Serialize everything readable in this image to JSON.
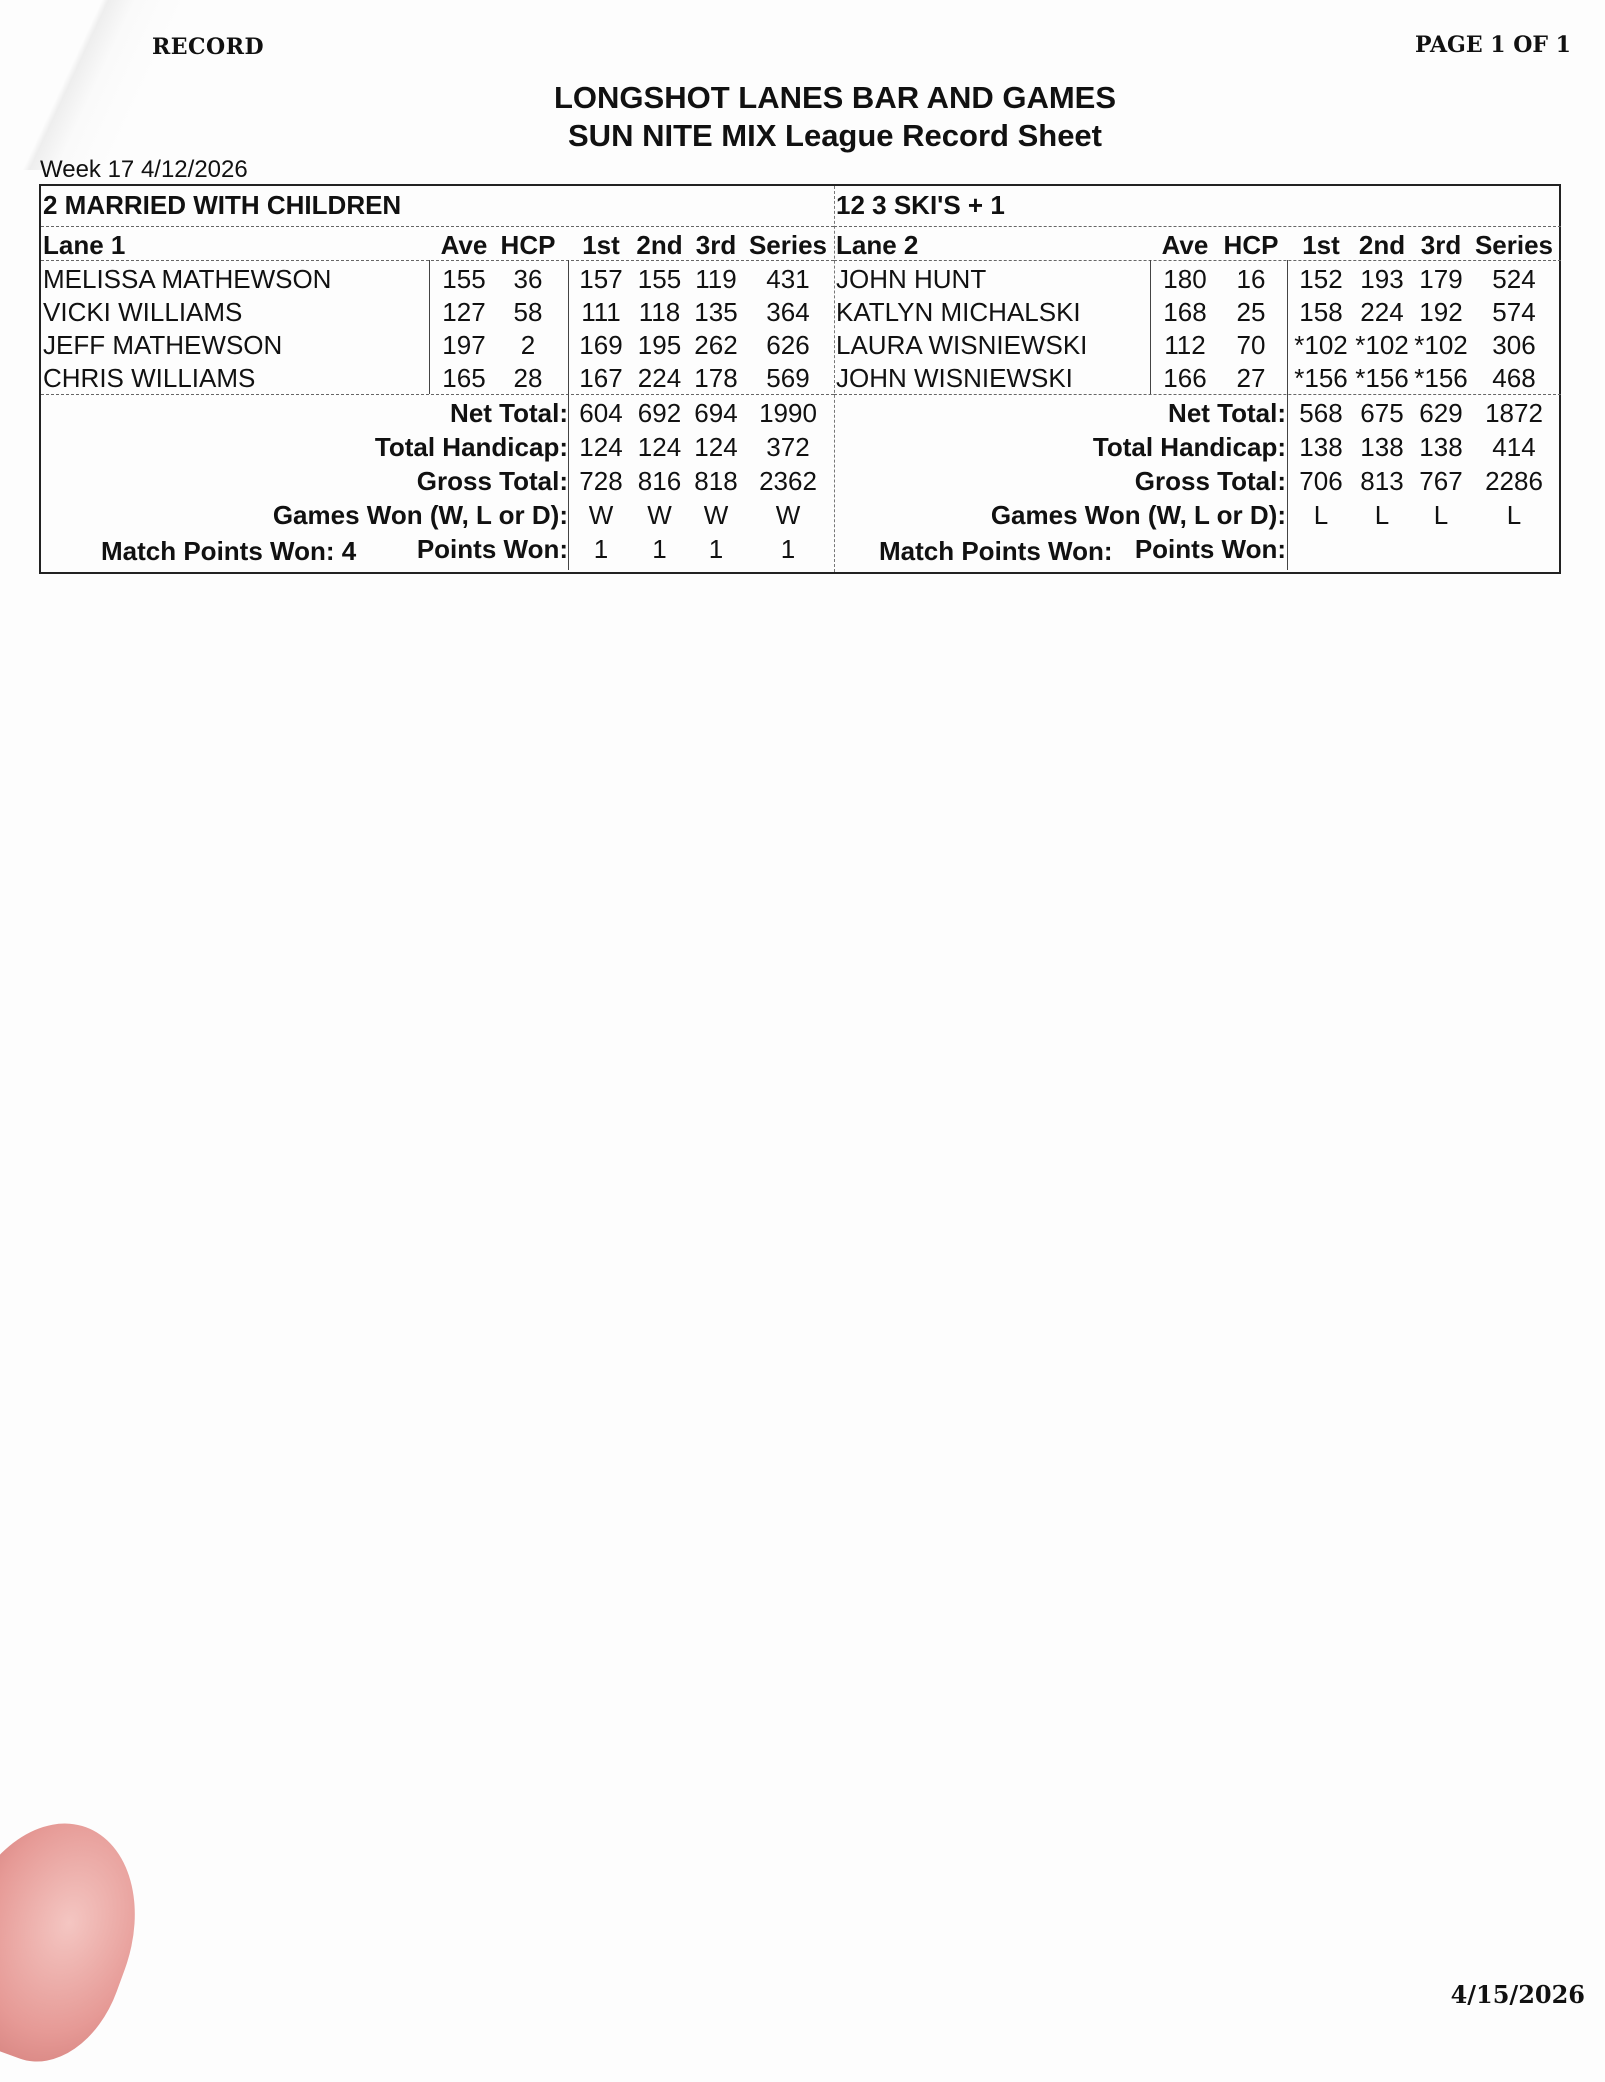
{
  "header": {
    "record_label": "RECORD",
    "page_label": "PAGE 1 OF 1",
    "title": "LONGSHOT LANES BAR AND GAMES",
    "subtitle": "SUN NITE MIX League Record Sheet",
    "week": "Week  17 4/12/2026"
  },
  "columns": [
    "Ave",
    "HCP",
    "1st",
    "2nd",
    "3rd",
    "Series"
  ],
  "teams": [
    {
      "name": "2 MARRIED WITH CHILDREN",
      "lane": "Lane   1",
      "players": [
        {
          "name": "MELISSA MATHEWSON",
          "ave": "155",
          "hcp": "36",
          "g1": "157",
          "g2": "155",
          "g3": "119",
          "series": "431"
        },
        {
          "name": "VICKI WILLIAMS",
          "ave": "127",
          "hcp": "58",
          "g1": "111",
          "g2": "118",
          "g3": "135",
          "series": "364"
        },
        {
          "name": "JEFF MATHEWSON",
          "ave": "197",
          "hcp": "2",
          "g1": "169",
          "g2": "195",
          "g3": "262",
          "series": "626"
        },
        {
          "name": "CHRIS WILLIAMS",
          "ave": "165",
          "hcp": "28",
          "g1": "167",
          "g2": "224",
          "g3": "178",
          "series": "569"
        }
      ],
      "totals": [
        {
          "label": "Net Total:",
          "values": [
            "604",
            "692",
            "694",
            "1990"
          ]
        },
        {
          "label": "Total Handicap:",
          "values": [
            "124",
            "124",
            "124",
            "372"
          ]
        },
        {
          "label": "Gross Total:",
          "values": [
            "728",
            "816",
            "818",
            "2362"
          ]
        },
        {
          "label": "Games Won (W, L or D):",
          "values": [
            "W",
            "W",
            "W",
            "W"
          ]
        },
        {
          "label": "Points Won:",
          "values": [
            "1",
            "1",
            "1",
            "1"
          ]
        }
      ],
      "match_points_label": "Match Points Won: 4"
    },
    {
      "name": "12 3 SKI'S + 1",
      "lane": "Lane   2",
      "players": [
        {
          "name": "JOHN HUNT",
          "ave": "180",
          "hcp": "16",
          "g1": "152",
          "g2": "193",
          "g3": "179",
          "series": "524"
        },
        {
          "name": "KATLYN MICHALSKI",
          "ave": "168",
          "hcp": "25",
          "g1": "158",
          "g2": "224",
          "g3": "192",
          "series": "574"
        },
        {
          "name": "LAURA WISNIEWSKI",
          "ave": "112",
          "hcp": "70",
          "g1": "*102",
          "g2": "*102",
          "g3": "*102",
          "series": "306"
        },
        {
          "name": "JOHN WISNIEWSKI",
          "ave": "166",
          "hcp": "27",
          "g1": "*156",
          "g2": "*156",
          "g3": "*156",
          "series": "468"
        }
      ],
      "totals": [
        {
          "label": "Net Total:",
          "values": [
            "568",
            "675",
            "629",
            "1872"
          ]
        },
        {
          "label": "Total Handicap:",
          "values": [
            "138",
            "138",
            "138",
            "414"
          ]
        },
        {
          "label": "Gross Total:",
          "values": [
            "706",
            "813",
            "767",
            "2286"
          ]
        },
        {
          "label": "Games Won (W, L or D):",
          "values": [
            "L",
            "L",
            "L",
            "L"
          ]
        },
        {
          "label": "Points Won:",
          "values": [
            "",
            "",
            "",
            ""
          ]
        }
      ],
      "match_points_label": "Match Points Won:"
    }
  ],
  "footer": {
    "date": "4/15/2026"
  }
}
